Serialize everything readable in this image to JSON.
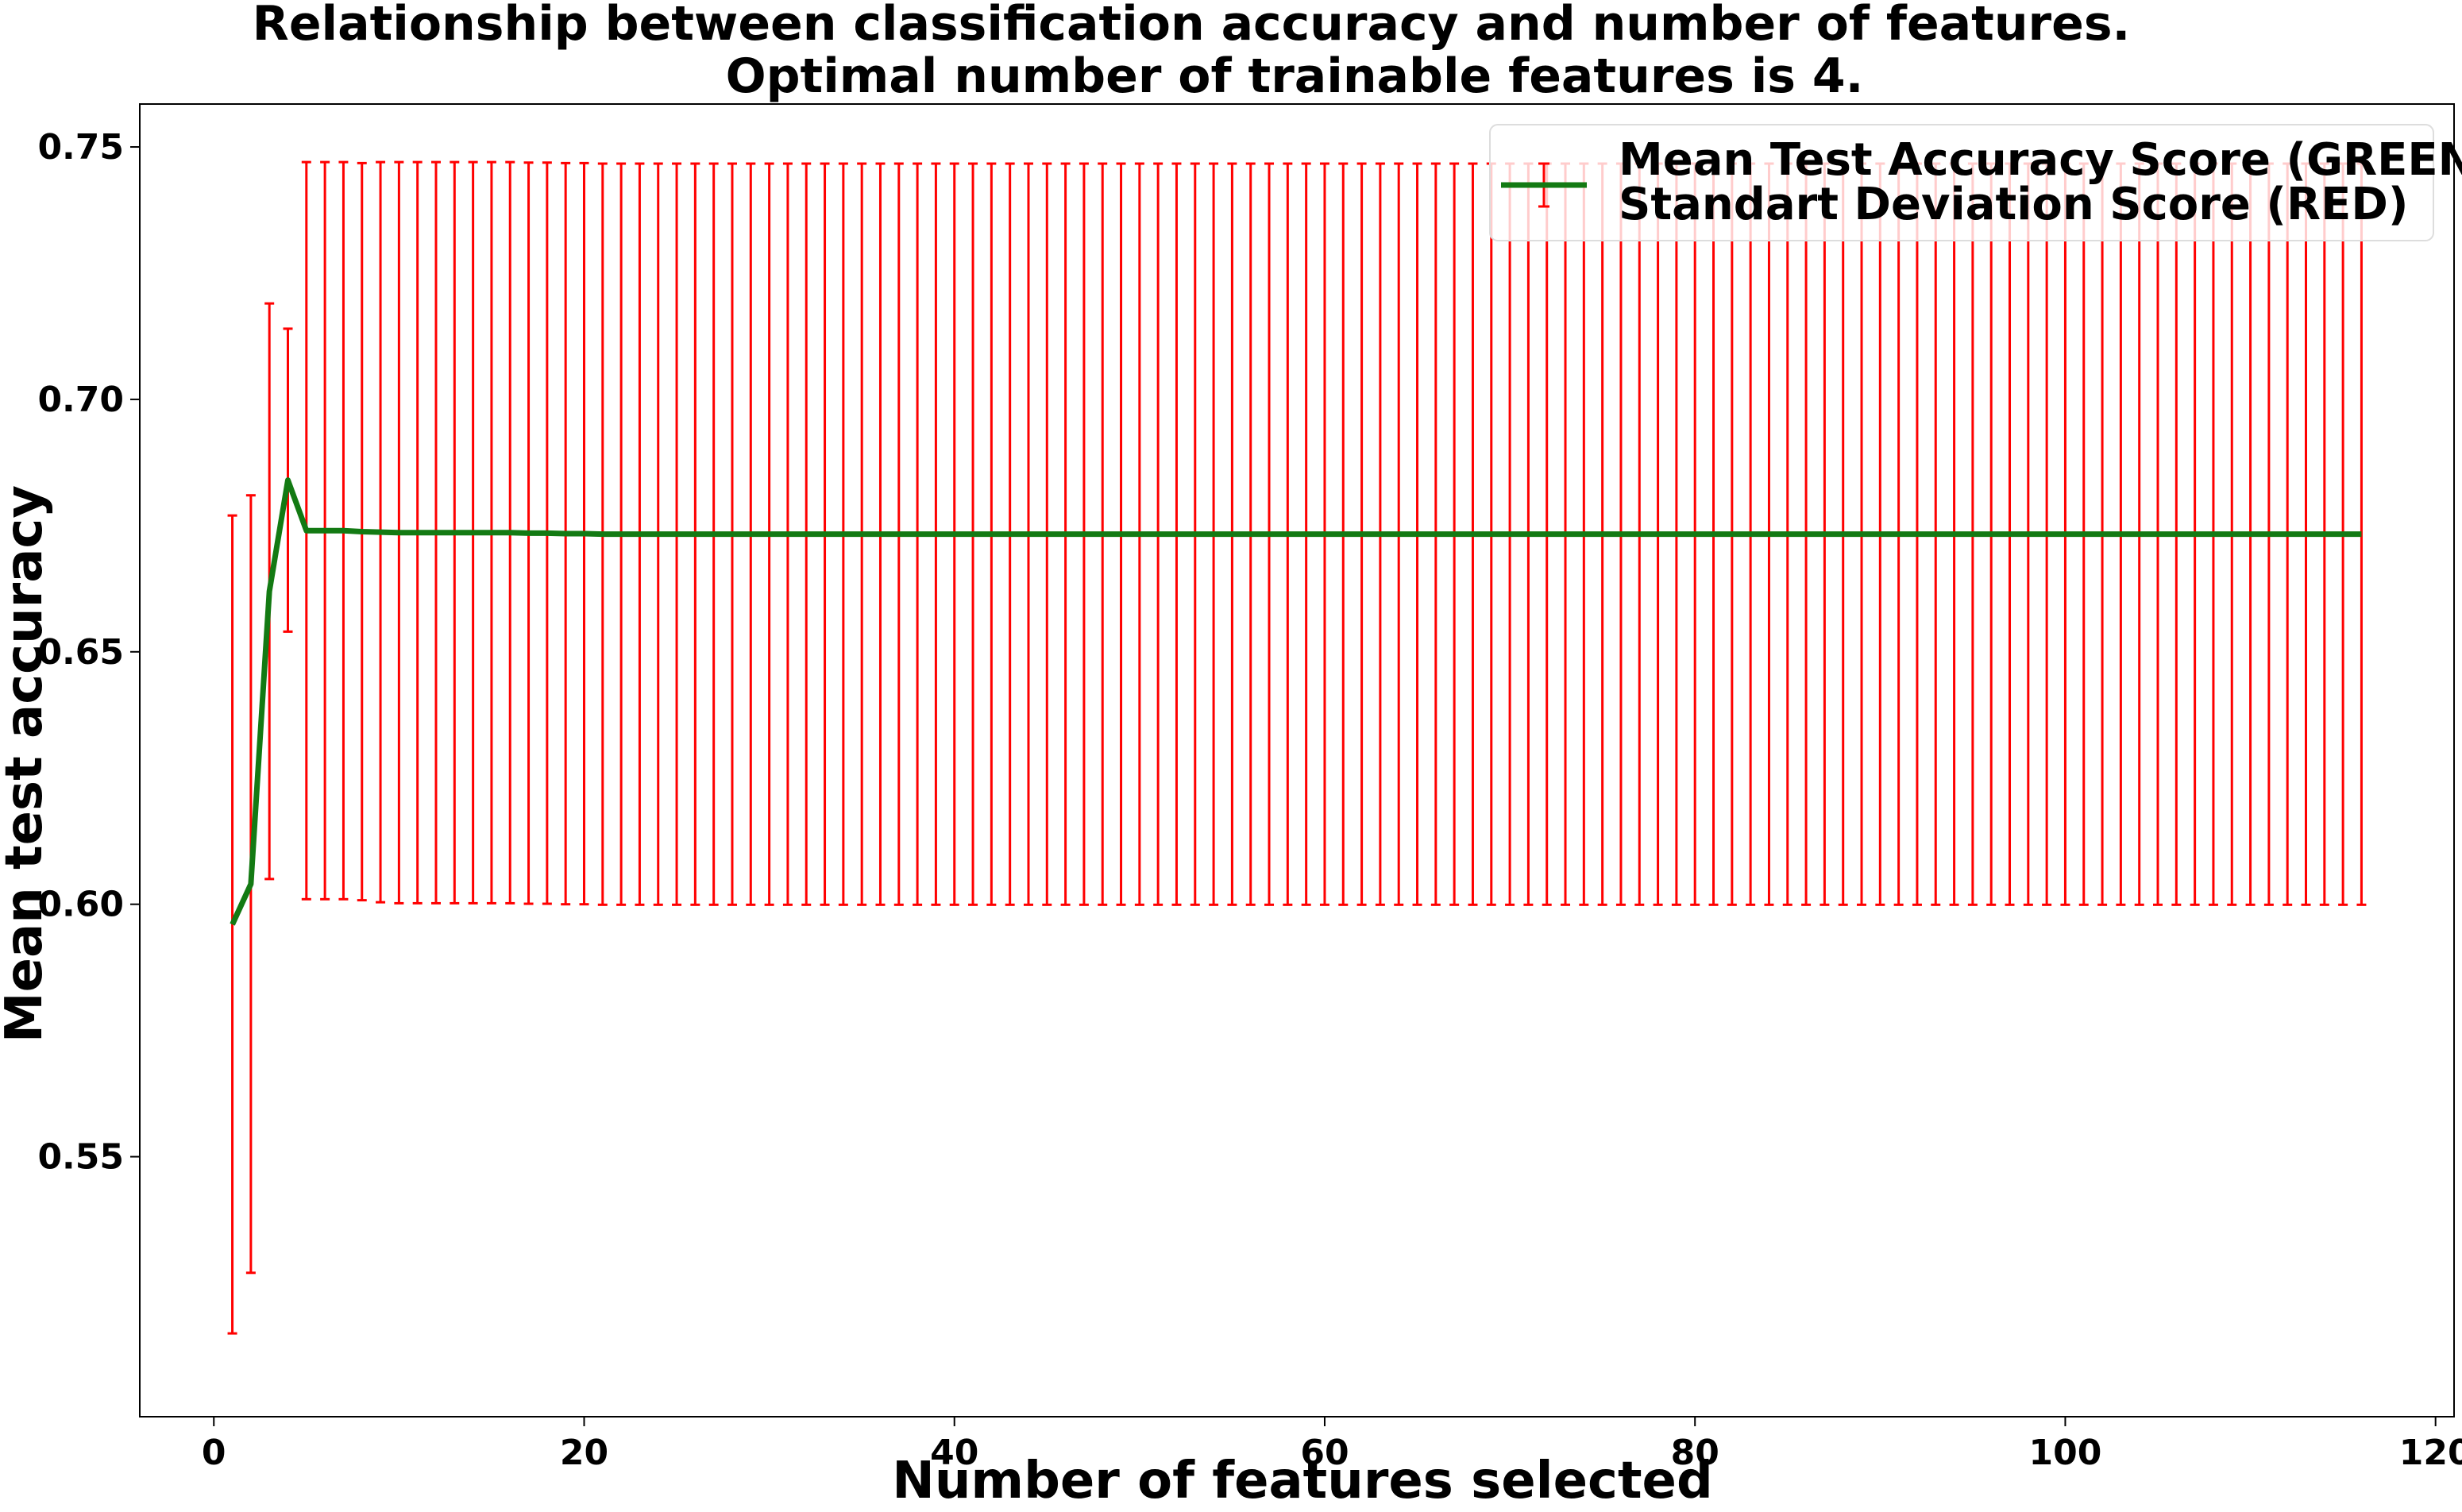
{
  "chart_data": {
    "type": "line",
    "title": "Relationship between classification accuracy and number of features.",
    "subtitle": "Optimal number of trainable features is 4.",
    "xlabel": "Number of features selected",
    "ylabel": "Mean test accuracy",
    "xlim": [
      -4,
      121
    ],
    "ylim": [
      0.4985,
      0.7585
    ],
    "x_ticks": [
      0,
      20,
      40,
      60,
      80,
      100,
      120
    ],
    "x_tick_labels": [
      "0",
      "20",
      "40",
      "60",
      "80",
      "100",
      "120"
    ],
    "y_ticks": [
      0.55,
      0.6,
      0.65,
      0.7,
      0.75
    ],
    "y_tick_labels": [
      "0.55",
      "0.60",
      "0.65",
      "0.70",
      "0.75"
    ],
    "grid": false,
    "legend_position": "top-right",
    "legend": [
      "Mean Test Accuracy Score (GREEN)",
      "Standart Deviation Score (RED)"
    ],
    "colors": {
      "line": "#137a13",
      "errorbar": "#ff0000",
      "axes": "#000000"
    },
    "series": [
      {
        "x_start": 1,
        "x_end": 116,
        "mean": {
          "explicit": [
            0.596,
            0.604,
            0.662,
            0.684,
            0.674,
            0.674,
            0.674,
            0.6738,
            0.6737,
            0.6736,
            0.6736,
            0.6736,
            0.6736,
            0.6736,
            0.6736,
            0.6736,
            0.6735,
            0.6735,
            0.6734,
            0.6734
          ],
          "tail_value": 0.6733
        },
        "std": {
          "explicit": [
            0.081,
            0.077,
            0.057,
            0.03,
            0.073,
            0.073,
            0.073,
            0.073,
            0.0733,
            0.0734,
            0.0734,
            0.0734,
            0.0734,
            0.0734,
            0.0734,
            0.0734,
            0.0734,
            0.0734,
            0.0734,
            0.0734
          ],
          "tail_value": 0.0734
        }
      }
    ]
  }
}
